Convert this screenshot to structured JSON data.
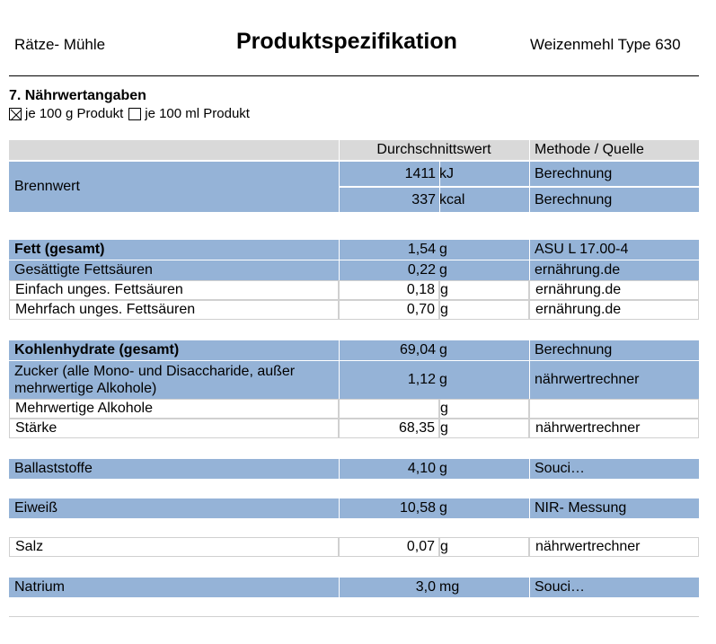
{
  "header": {
    "left": "Rätze- Mühle",
    "title": "Produktspezifikation",
    "right": "Weizenmehl Type 630"
  },
  "section": {
    "title": "7. Nährwertangaben",
    "option1_label": "je 100 g Produkt",
    "option1_checked": true,
    "option2_label": "je 100 ml Produkt",
    "option2_checked": false
  },
  "table": {
    "columns": [
      "",
      "Durchschnittswert",
      "Methode / Quelle"
    ],
    "brennwert": {
      "name": "Brennwert",
      "rows": [
        {
          "value": "1411",
          "unit": "kJ",
          "method": "Berechnung"
        },
        {
          "value": "337",
          "unit": "kcal",
          "method": "Berechnung"
        }
      ]
    },
    "fett": [
      {
        "name": "Fett (gesamt)",
        "value": "1,54",
        "unit": "g",
        "method": "ASU L 17.00-4"
      },
      {
        "name": "Gesättigte Fettsäuren",
        "value": "0,22",
        "unit": "g",
        "method": "ernährung.de"
      },
      {
        "name": "Einfach unges. Fettsäuren",
        "value": "0,18",
        "unit": "g",
        "method": "ernährung.de"
      },
      {
        "name": "Mehrfach unges. Fettsäuren",
        "value": "0,70",
        "unit": "g",
        "method": "ernährung.de"
      }
    ],
    "kh": [
      {
        "name": "Kohlenhydrate (gesamt)",
        "value": "69,04",
        "unit": "g",
        "method": "Berechnung"
      },
      {
        "name": "Zucker (alle Mono- und Disaccharide, außer mehrwertige Alkohole)",
        "value": "1,12",
        "unit": "g",
        "method": "nährwertrechner"
      },
      {
        "name": "Mehrwertige Alkohole",
        "value": "",
        "unit": "g",
        "method": ""
      },
      {
        "name": "Stärke",
        "value": "68,35",
        "unit": "g",
        "method": "nährwertrechner"
      }
    ],
    "ballast": {
      "name": "Ballaststoffe",
      "value": "4,10",
      "unit": "g",
      "method": "Souci…"
    },
    "eiweiss": {
      "name": "Eiweiß",
      "value": "10,58",
      "unit": "g",
      "method": "NIR- Messung"
    },
    "salz": {
      "name": "Salz",
      "value": "0,07",
      "unit": "g",
      "method": "nährwertrechner"
    },
    "natrium": {
      "name": "Natrium",
      "value": "3,0",
      "unit": "mg",
      "method": "Souci…"
    }
  },
  "colors": {
    "row_blue": "#95b3d7",
    "header_grey": "#d9d9d9"
  }
}
